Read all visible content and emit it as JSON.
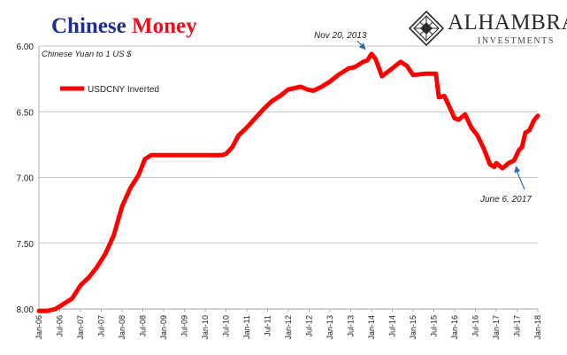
{
  "title": {
    "part1": "Chinese",
    "part2": "Money"
  },
  "logo": {
    "name": "ALHAMBRA",
    "subtitle": "INVESTMENTS"
  },
  "colors": {
    "title_part1": "#1f2d8c",
    "title_part2": "#e8121b",
    "series": "#ff0000",
    "annotation": "#2e6da4",
    "grid": "#b3b3b3"
  },
  "chart_data": {
    "type": "line",
    "subtitle": "Chinese Yuan to 1 US $",
    "ylim": [
      8.0,
      6.0
    ],
    "y_inverted": true,
    "yticks": [
      "6.00",
      "6.50",
      "7.00",
      "7.50",
      "8.00"
    ],
    "ytick_values": [
      6.0,
      6.5,
      7.0,
      7.5,
      8.0
    ],
    "xlim": [
      2006.0,
      2018.0
    ],
    "xticks": [
      "Jan-06",
      "Jul-06",
      "Jan-07",
      "Jul-07",
      "Jan-08",
      "Jul-08",
      "Jan-09",
      "Jul-09",
      "Jan-10",
      "Jul-10",
      "Jan-11",
      "Jul-11",
      "Jan-12",
      "Jul-12",
      "Jan-13",
      "Jul-13",
      "Jan-14",
      "Jul-14",
      "Jan-15",
      "Jul-15",
      "Jan-16",
      "Jul-16",
      "Jan-17",
      "Jul-17",
      "Jan-18"
    ],
    "grid": "horizontal",
    "legend": "upper-left",
    "series": [
      {
        "name": "USDCNY Inverted",
        "x": [
          2006.0,
          2006.2,
          2006.4,
          2006.6,
          2006.8,
          2007.0,
          2007.2,
          2007.4,
          2007.6,
          2007.8,
          2008.0,
          2008.2,
          2008.4,
          2008.55,
          2008.7,
          2009.0,
          2009.5,
          2010.0,
          2010.4,
          2010.5,
          2010.65,
          2010.8,
          2011.0,
          2011.2,
          2011.4,
          2011.6,
          2011.8,
          2012.0,
          2012.15,
          2012.3,
          2012.45,
          2012.6,
          2012.8,
          2013.0,
          2013.2,
          2013.45,
          2013.6,
          2013.8,
          2013.9,
          2014.0,
          2014.1,
          2014.25,
          2014.5,
          2014.7,
          2014.85,
          2015.0,
          2015.3,
          2015.55,
          2015.62,
          2015.75,
          2015.9,
          2016.0,
          2016.1,
          2016.25,
          2016.4,
          2016.55,
          2016.7,
          2016.85,
          2016.95,
          2017.0,
          2017.15,
          2017.3,
          2017.43,
          2017.55,
          2017.62,
          2017.7,
          2017.8,
          2017.9,
          2018.0
        ],
        "values": [
          8.07,
          8.04,
          8.0,
          7.96,
          7.92,
          7.82,
          7.76,
          7.68,
          7.58,
          7.44,
          7.22,
          7.08,
          6.98,
          6.86,
          6.83,
          6.83,
          6.83,
          6.83,
          6.83,
          6.82,
          6.77,
          6.68,
          6.62,
          6.55,
          6.48,
          6.42,
          6.38,
          6.33,
          6.32,
          6.31,
          6.33,
          6.34,
          6.31,
          6.27,
          6.22,
          6.17,
          6.16,
          6.12,
          6.11,
          6.06,
          6.1,
          6.23,
          6.17,
          6.12,
          6.15,
          6.22,
          6.21,
          6.21,
          6.39,
          6.38,
          6.48,
          6.55,
          6.56,
          6.52,
          6.62,
          6.68,
          6.78,
          6.9,
          6.92,
          6.89,
          6.93,
          6.89,
          6.87,
          6.79,
          6.77,
          6.66,
          6.64,
          6.57,
          6.53
        ]
      }
    ],
    "annotations": [
      {
        "text": "Nov 20, 2013",
        "x": 2013.89,
        "y": 6.05
      },
      {
        "text": "June 6, 2017",
        "x": 2017.43,
        "y": 6.83
      }
    ]
  }
}
